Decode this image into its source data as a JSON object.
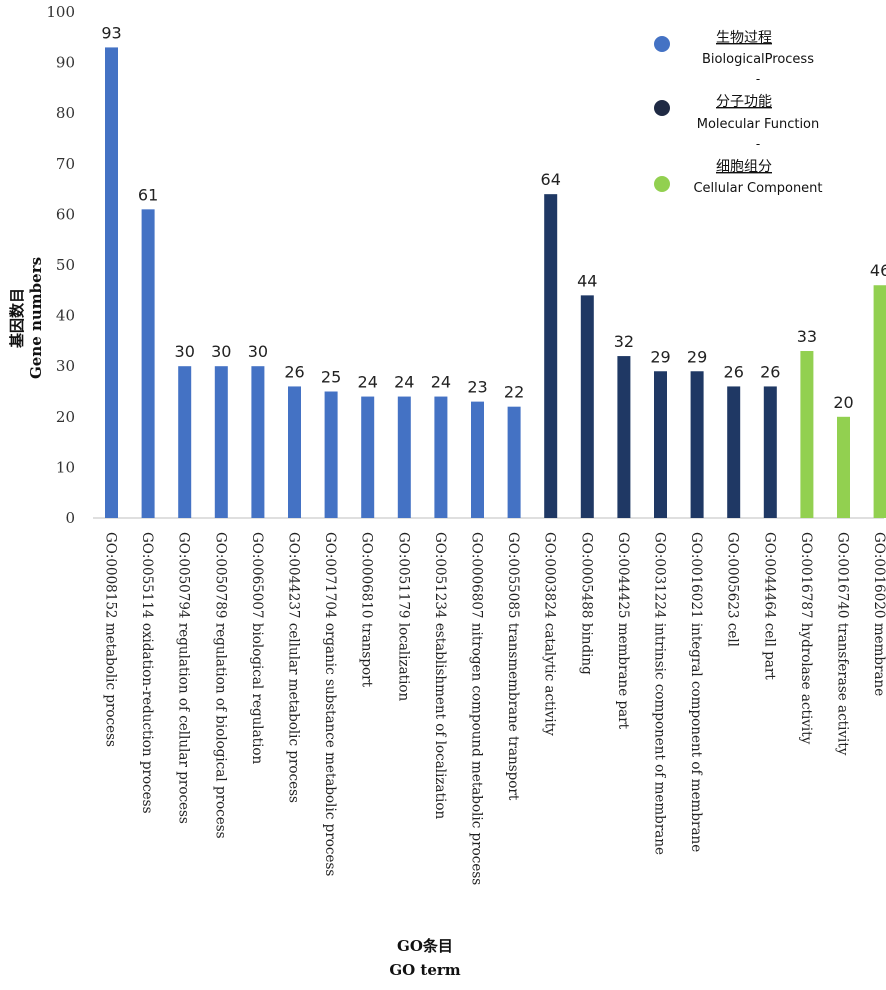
{
  "chart_data": {
    "type": "bar",
    "title": "",
    "xlabel_cn": "GO条目",
    "xlabel_en": "GO term",
    "ylabel_cn": "基因数目",
    "ylabel_en": "Gene numbers",
    "ylim": [
      0,
      100
    ],
    "yticks": [
      0,
      10,
      20,
      30,
      40,
      50,
      60,
      70,
      80,
      90,
      100
    ],
    "grid": false,
    "legend_position": "top-right",
    "categories": [
      "GO:0008152 metabolic process",
      "GO:0055114 oxidation-reduction process",
      "GO:0050794 regulation of cellular process",
      "GO:0050789 regulation of biological process",
      "GO:0065007 biological regulation",
      "GO:0044237 cellular metabolic process",
      "GO:0071704 organic substance metabolic process",
      "GO:0006810 transport",
      "GO:0051179 localization",
      "GO:0051234 establishment of localization",
      "GO:0006807 nitrogen compound metabolic process",
      "GO:0055085 transmembrane transport",
      "GO:0003824 catalytic activity",
      "GO:0005488 binding",
      "GO:0044425 membrane part",
      "GO:0031224 intrinsic component of membrane",
      "GO:0016021 integral component of membrane",
      "GO:0005623 cell",
      "GO:0044464 cell part",
      "GO:0016787 hydrolase activity",
      "GO:0016740 transferase activity",
      "GO:0016020 membrane"
    ],
    "values": [
      93,
      61,
      30,
      30,
      30,
      26,
      25,
      24,
      24,
      24,
      23,
      22,
      64,
      44,
      32,
      29,
      29,
      26,
      26,
      33,
      20,
      46
    ],
    "groups": [
      0,
      0,
      0,
      0,
      0,
      0,
      0,
      0,
      0,
      0,
      0,
      0,
      1,
      1,
      1,
      1,
      1,
      1,
      1,
      2,
      2,
      2
    ],
    "legend": [
      {
        "cn": "生物过程",
        "en": "BiologicalProcess",
        "color": "#4472c4"
      },
      {
        "cn": "分子功能",
        "en": "Molecular Function",
        "color": "#1f2a44"
      },
      {
        "cn": "细胞组分",
        "en": "Cellular Component",
        "color": "#92d050"
      }
    ],
    "bar_colors": [
      "#4472c4",
      "#1f3864",
      "#92d050"
    ],
    "legend_separator": "-"
  }
}
